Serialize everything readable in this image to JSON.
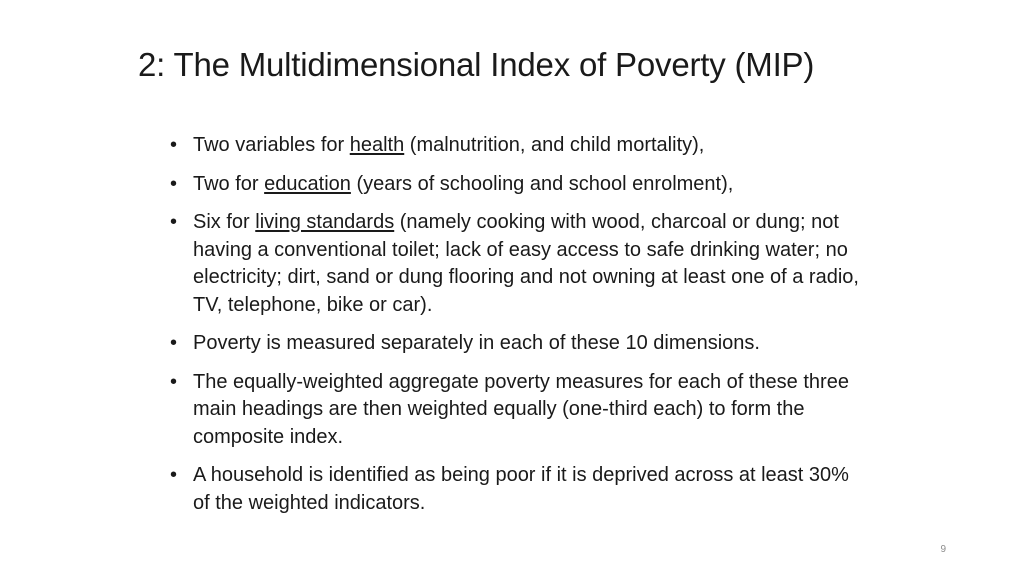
{
  "slide": {
    "title": "2: The Multidimensional Index of Poverty (MIP)",
    "bullet_glyph": "•",
    "bullets": [
      {
        "before": "Two variables for ",
        "keyword": "health",
        "after": " (malnutrition, and child mortality),"
      },
      {
        "before": "Two for ",
        "keyword": "education",
        "after": " (years of schooling and school enrolment),"
      },
      {
        "before": "Six for ",
        "keyword": "living standards",
        "after": " (namely cooking with wood, charcoal or dung; not having a conventional toilet; lack of easy access to safe drinking water; no electricity; dirt, sand or dung flooring and not owning at least one of a radio, TV, telephone, bike or car)."
      },
      {
        "text": "Poverty is measured separately in each of these 10 dimensions."
      },
      {
        "text": "The equally-weighted aggregate poverty measures for each of these three main headings are then weighted equally (one-third each) to form the composite index."
      },
      {
        "text": "A household is identified as being poor if it is deprived across at least 30% of the weighted indicators."
      }
    ],
    "page_number": "9"
  }
}
